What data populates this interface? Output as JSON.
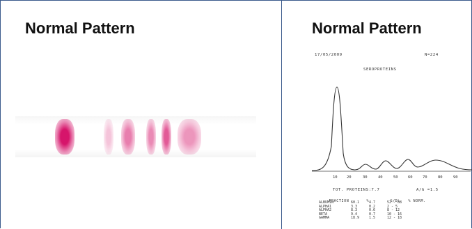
{
  "titles": {
    "left": "Normal Pattern",
    "right": "Normal Pattern"
  },
  "colors": {
    "frame": "#3a5a8c",
    "band": "#d6156b"
  },
  "gel_strip": {
    "bands": [
      {
        "name": "albumin",
        "intensity": 1.0
      },
      {
        "name": "alpha1",
        "intensity": 0.25
      },
      {
        "name": "alpha2",
        "intensity": 0.55
      },
      {
        "name": "beta1",
        "intensity": 0.5
      },
      {
        "name": "beta2",
        "intensity": 0.7
      },
      {
        "name": "gamma",
        "intensity": 0.45
      }
    ]
  },
  "printout": {
    "date": "17/05/2009",
    "sample": "N=224",
    "heading": "SEROPROTEINS",
    "axis_ticks": [
      "10",
      "20",
      "30",
      "40",
      "50",
      "60",
      "70",
      "80",
      "90"
    ],
    "total_proteins": "TOT. PROTEINS:7.7",
    "ag_ratio": "A/G =1.5",
    "table_headers": [
      "FRACTION",
      "%",
      "G/DL",
      "% NORM."
    ],
    "rows": [
      [
        "ALBUMIN",
        "60.1",
        "4.7",
        "52 - 68"
      ],
      [
        "ALPHA1",
        "3.3",
        "0.2",
        "2 - 5"
      ],
      [
        "ALPHA2",
        "8.3",
        "0.6",
        "8 - 12"
      ],
      [
        "BETA",
        "9.4",
        "0.7",
        "10 - 16"
      ],
      [
        "GAMMA",
        "18.9",
        "1.5",
        "12 - 18"
      ]
    ]
  }
}
